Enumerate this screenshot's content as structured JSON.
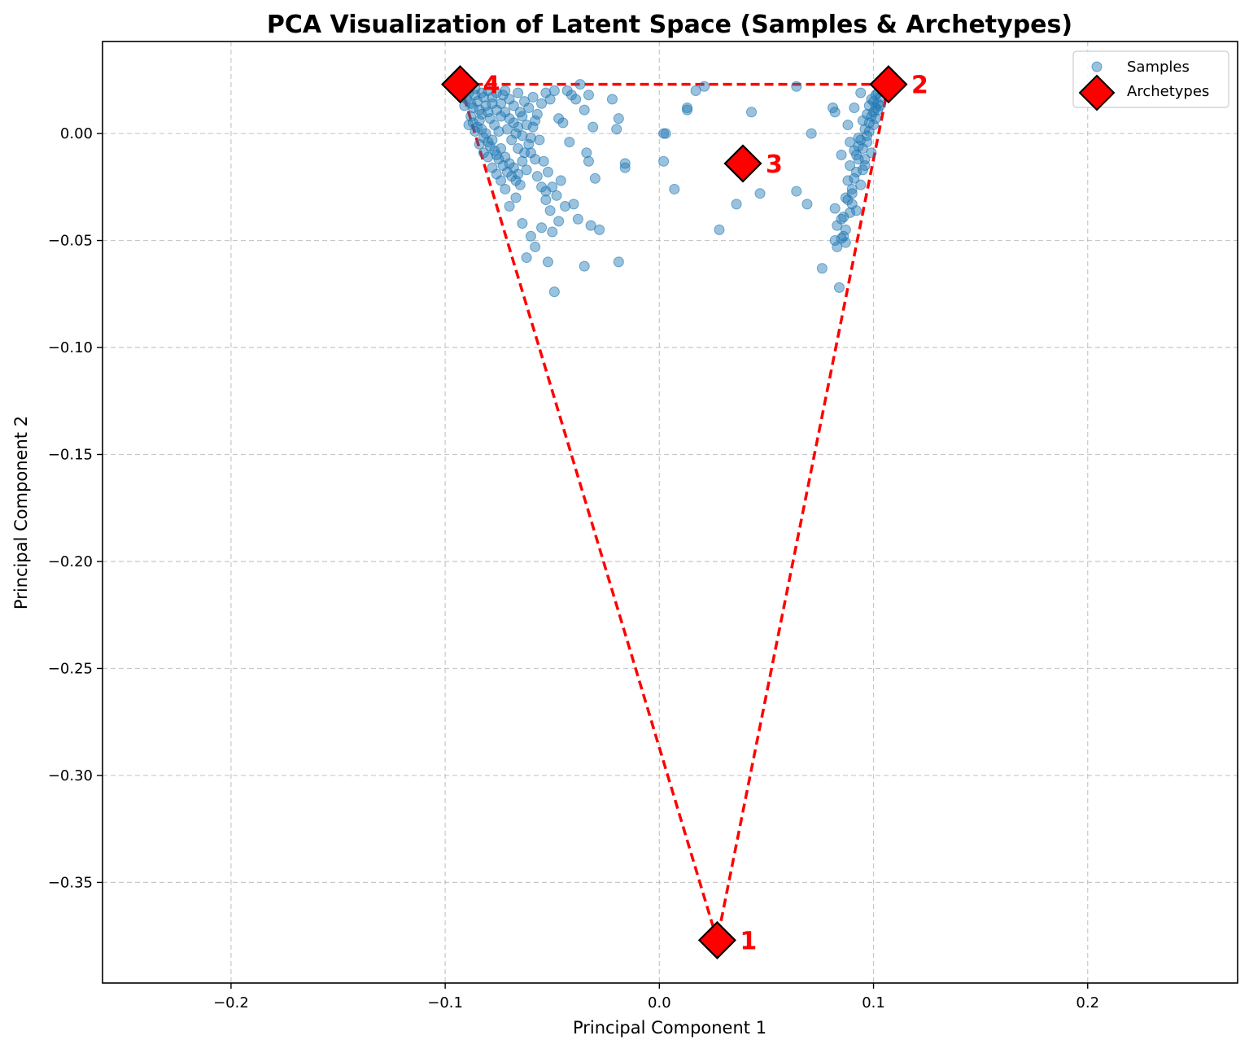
{
  "chart_data": {
    "type": "scatter",
    "title": "PCA Visualization of Latent Space (Samples & Archetypes)",
    "xlabel": "Principal Component 1",
    "ylabel": "Principal Component 2",
    "xlim": [
      -0.26,
      0.27
    ],
    "ylim": [
      -0.397,
      0.043
    ],
    "x_ticks": [
      -0.2,
      -0.1,
      0.0,
      0.1,
      0.2
    ],
    "x_tick_labels": [
      "−0.2",
      "−0.1",
      "0.0",
      "0.1",
      "0.2"
    ],
    "y_ticks": [
      0.0,
      -0.05,
      -0.1,
      -0.15,
      -0.2,
      -0.25,
      -0.3,
      -0.35
    ],
    "y_tick_labels": [
      "0.00",
      "−0.05",
      "−0.10",
      "−0.15",
      "−0.20",
      "−0.25",
      "−0.30",
      "−0.35"
    ],
    "grid": true,
    "legend_position": "top-right",
    "series": [
      {
        "name": "Samples",
        "color": "#1f77b4",
        "marker": "circle",
        "points": [
          [
            -0.093,
            0.022
          ],
          [
            -0.091,
            0.02
          ],
          [
            -0.089,
            0.019
          ],
          [
            -0.09,
            0.016
          ],
          [
            -0.088,
            0.014
          ],
          [
            -0.087,
            0.012
          ],
          [
            -0.086,
            0.018
          ],
          [
            -0.085,
            0.015
          ],
          [
            -0.084,
            0.011
          ],
          [
            -0.083,
            0.009
          ],
          [
            -0.082,
            0.017
          ],
          [
            -0.081,
            0.013
          ],
          [
            -0.08,
            0.01
          ],
          [
            -0.079,
            0.007
          ],
          [
            -0.078,
            0.014
          ],
          [
            -0.077,
            0.004
          ],
          [
            -0.076,
            0.011
          ],
          [
            -0.075,
            0.001
          ],
          [
            -0.074,
            0.008
          ],
          [
            -0.073,
            0.018
          ],
          [
            -0.088,
            0.008
          ],
          [
            -0.087,
            0.005
          ],
          [
            -0.085,
            0.003
          ],
          [
            -0.084,
            0.006
          ],
          [
            -0.083,
            0.002
          ],
          [
            -0.082,
            -0.002
          ],
          [
            -0.081,
            0.0
          ],
          [
            -0.08,
            -0.004
          ],
          [
            -0.079,
            -0.006
          ],
          [
            -0.078,
            -0.003
          ],
          [
            -0.077,
            -0.008
          ],
          [
            -0.076,
            -0.01
          ],
          [
            -0.075,
            -0.012
          ],
          [
            -0.074,
            -0.007
          ],
          [
            -0.073,
            -0.015
          ],
          [
            -0.072,
            -0.011
          ],
          [
            -0.071,
            -0.018
          ],
          [
            -0.07,
            -0.014
          ],
          [
            -0.069,
            -0.02
          ],
          [
            -0.068,
            -0.016
          ],
          [
            -0.067,
            -0.022
          ],
          [
            -0.066,
            -0.019
          ],
          [
            -0.065,
            -0.024
          ],
          [
            -0.064,
            -0.013
          ],
          [
            -0.063,
            -0.009
          ],
          [
            -0.062,
            -0.017
          ],
          [
            -0.061,
            -0.005
          ],
          [
            -0.06,
            -0.002
          ],
          [
            -0.059,
            0.003
          ],
          [
            -0.058,
            0.006
          ],
          [
            -0.072,
            0.02
          ],
          [
            -0.07,
            0.016
          ],
          [
            -0.068,
            0.013
          ],
          [
            -0.066,
            0.019
          ],
          [
            -0.065,
            0.01
          ],
          [
            -0.063,
            0.015
          ],
          [
            -0.061,
            0.012
          ],
          [
            -0.059,
            0.017
          ],
          [
            -0.057,
            0.009
          ],
          [
            -0.055,
            0.014
          ],
          [
            -0.053,
            0.019
          ],
          [
            -0.051,
            0.016
          ],
          [
            -0.049,
            0.02
          ],
          [
            -0.047,
            0.007
          ],
          [
            -0.045,
            0.005
          ],
          [
            -0.043,
            0.02
          ],
          [
            -0.041,
            0.018
          ],
          [
            -0.039,
            0.016
          ],
          [
            -0.037,
            0.023
          ],
          [
            -0.035,
            0.011
          ],
          [
            -0.033,
            0.018
          ],
          [
            -0.031,
            0.003
          ],
          [
            -0.022,
            0.016
          ],
          [
            -0.019,
            0.007
          ],
          [
            -0.02,
            0.002
          ],
          [
            -0.056,
            -0.003
          ],
          [
            -0.054,
            -0.013
          ],
          [
            -0.052,
            -0.018
          ],
          [
            -0.05,
            -0.025
          ],
          [
            -0.048,
            -0.029
          ],
          [
            -0.046,
            -0.022
          ],
          [
            -0.044,
            -0.034
          ],
          [
            -0.042,
            -0.004
          ],
          [
            -0.04,
            -0.033
          ],
          [
            -0.038,
            -0.04
          ],
          [
            -0.034,
            -0.009
          ],
          [
            -0.033,
            -0.013
          ],
          [
            -0.03,
            -0.021
          ],
          [
            -0.032,
            -0.043
          ],
          [
            -0.028,
            -0.045
          ],
          [
            -0.016,
            -0.014
          ],
          [
            -0.016,
            -0.016
          ],
          [
            -0.072,
            -0.026
          ],
          [
            -0.07,
            -0.034
          ],
          [
            -0.067,
            -0.03
          ],
          [
            -0.064,
            -0.042
          ],
          [
            -0.062,
            -0.058
          ],
          [
            -0.06,
            -0.048
          ],
          [
            -0.058,
            -0.053
          ],
          [
            -0.055,
            -0.044
          ],
          [
            -0.053,
            -0.031
          ],
          [
            -0.051,
            -0.036
          ],
          [
            -0.05,
            -0.046
          ],
          [
            -0.052,
            -0.06
          ],
          [
            -0.049,
            -0.074
          ],
          [
            -0.047,
            -0.041
          ],
          [
            -0.035,
            -0.062
          ],
          [
            -0.019,
            -0.06
          ],
          [
            -0.071,
            0.002
          ],
          [
            -0.069,
            -0.003
          ],
          [
            -0.067,
            0.0
          ],
          [
            -0.066,
            -0.007
          ],
          [
            -0.064,
            -0.001
          ],
          [
            -0.062,
            0.004
          ],
          [
            -0.06,
            -0.009
          ],
          [
            -0.058,
            -0.012
          ],
          [
            -0.057,
            -0.02
          ],
          [
            -0.055,
            -0.025
          ],
          [
            -0.053,
            -0.027
          ],
          [
            -0.086,
            0.001
          ],
          [
            -0.084,
            -0.005
          ],
          [
            -0.082,
            -0.009
          ],
          [
            -0.08,
            -0.011
          ],
          [
            -0.078,
            -0.016
          ],
          [
            -0.076,
            -0.019
          ],
          [
            -0.074,
            -0.022
          ],
          [
            -0.089,
            0.004
          ],
          [
            -0.091,
            0.013
          ],
          [
            -0.092,
            0.017
          ],
          [
            -0.086,
            0.021
          ],
          [
            -0.083,
            0.019
          ],
          [
            -0.08,
            0.02
          ],
          [
            -0.078,
            0.017
          ],
          [
            -0.076,
            0.019
          ],
          [
            -0.074,
            0.014
          ],
          [
            -0.072,
            0.01
          ],
          [
            -0.07,
            0.007
          ],
          [
            -0.068,
            0.005
          ],
          [
            -0.066,
            0.003
          ],
          [
            -0.064,
            0.008
          ],
          [
            0.002,
            0.0
          ],
          [
            0.003,
            0.0
          ],
          [
            0.002,
            -0.013
          ],
          [
            0.007,
            -0.026
          ],
          [
            0.013,
            0.012
          ],
          [
            0.013,
            0.011
          ],
          [
            0.017,
            0.02
          ],
          [
            0.021,
            0.022
          ],
          [
            0.028,
            -0.045
          ],
          [
            0.036,
            -0.033
          ],
          [
            0.043,
            0.01
          ],
          [
            0.047,
            -0.028
          ],
          [
            0.064,
            -0.027
          ],
          [
            0.064,
            0.022
          ],
          [
            0.069,
            -0.033
          ],
          [
            0.071,
            0.0
          ],
          [
            0.076,
            -0.063
          ],
          [
            0.081,
            0.012
          ],
          [
            0.082,
            0.01
          ],
          [
            0.082,
            -0.035
          ],
          [
            0.083,
            -0.043
          ],
          [
            0.082,
            -0.05
          ],
          [
            0.083,
            -0.053
          ],
          [
            0.084,
            -0.072
          ],
          [
            0.085,
            -0.04
          ],
          [
            0.085,
            -0.01
          ],
          [
            0.086,
            -0.048
          ],
          [
            0.087,
            -0.051
          ],
          [
            0.087,
            -0.03
          ],
          [
            0.088,
            -0.022
          ],
          [
            0.088,
            0.004
          ],
          [
            0.089,
            -0.015
          ],
          [
            0.089,
            -0.004
          ],
          [
            0.09,
            -0.026
          ],
          [
            0.09,
            -0.033
          ],
          [
            0.091,
            -0.008
          ],
          [
            0.091,
            0.012
          ],
          [
            0.092,
            -0.036
          ],
          [
            0.092,
            -0.018
          ],
          [
            0.093,
            -0.002
          ],
          [
            0.093,
            -0.012
          ],
          [
            0.094,
            0.019
          ],
          [
            0.094,
            -0.024
          ],
          [
            0.095,
            0.006
          ],
          [
            0.095,
            -0.007
          ],
          [
            0.096,
            0.002
          ],
          [
            0.096,
            -0.015
          ],
          [
            0.097,
            0.009
          ],
          [
            0.097,
            -0.004
          ],
          [
            0.098,
            0.013
          ],
          [
            0.098,
            0.001
          ],
          [
            0.099,
            0.016
          ],
          [
            0.099,
            -0.009
          ],
          [
            0.1,
            0.01
          ],
          [
            0.1,
            0.004
          ],
          [
            0.101,
            0.018
          ],
          [
            0.101,
            0.007
          ],
          [
            0.102,
            0.014
          ],
          [
            0.102,
            0.011
          ],
          [
            0.103,
            0.017
          ],
          [
            0.103,
            0.013
          ],
          [
            0.104,
            0.02
          ],
          [
            0.09,
            -0.028
          ],
          [
            0.091,
            -0.021
          ],
          [
            0.092,
            -0.01
          ],
          [
            0.093,
            -0.006
          ],
          [
            0.094,
            -0.003
          ],
          [
            0.095,
            -0.017
          ],
          [
            0.096,
            -0.012
          ],
          [
            0.097,
            -0.001
          ],
          [
            0.098,
            0.005
          ],
          [
            0.099,
            0.008
          ],
          [
            0.1,
            0.015
          ],
          [
            0.101,
            0.012
          ],
          [
            0.102,
            0.019
          ],
          [
            0.089,
            -0.037
          ],
          [
            0.088,
            -0.031
          ],
          [
            0.087,
            -0.045
          ],
          [
            0.086,
            -0.039
          ],
          [
            0.085,
            -0.049
          ]
        ]
      },
      {
        "name": "Archetypes",
        "color": "#ff0000",
        "marker": "diamond",
        "points": [
          [
            0.027,
            -0.377
          ],
          [
            0.107,
            0.023
          ],
          [
            0.039,
            -0.014
          ],
          [
            -0.093,
            0.023
          ]
        ],
        "labels": [
          "1",
          "2",
          "3",
          "4"
        ]
      }
    ],
    "hull_order": [
      3,
      1,
      0,
      3
    ]
  }
}
